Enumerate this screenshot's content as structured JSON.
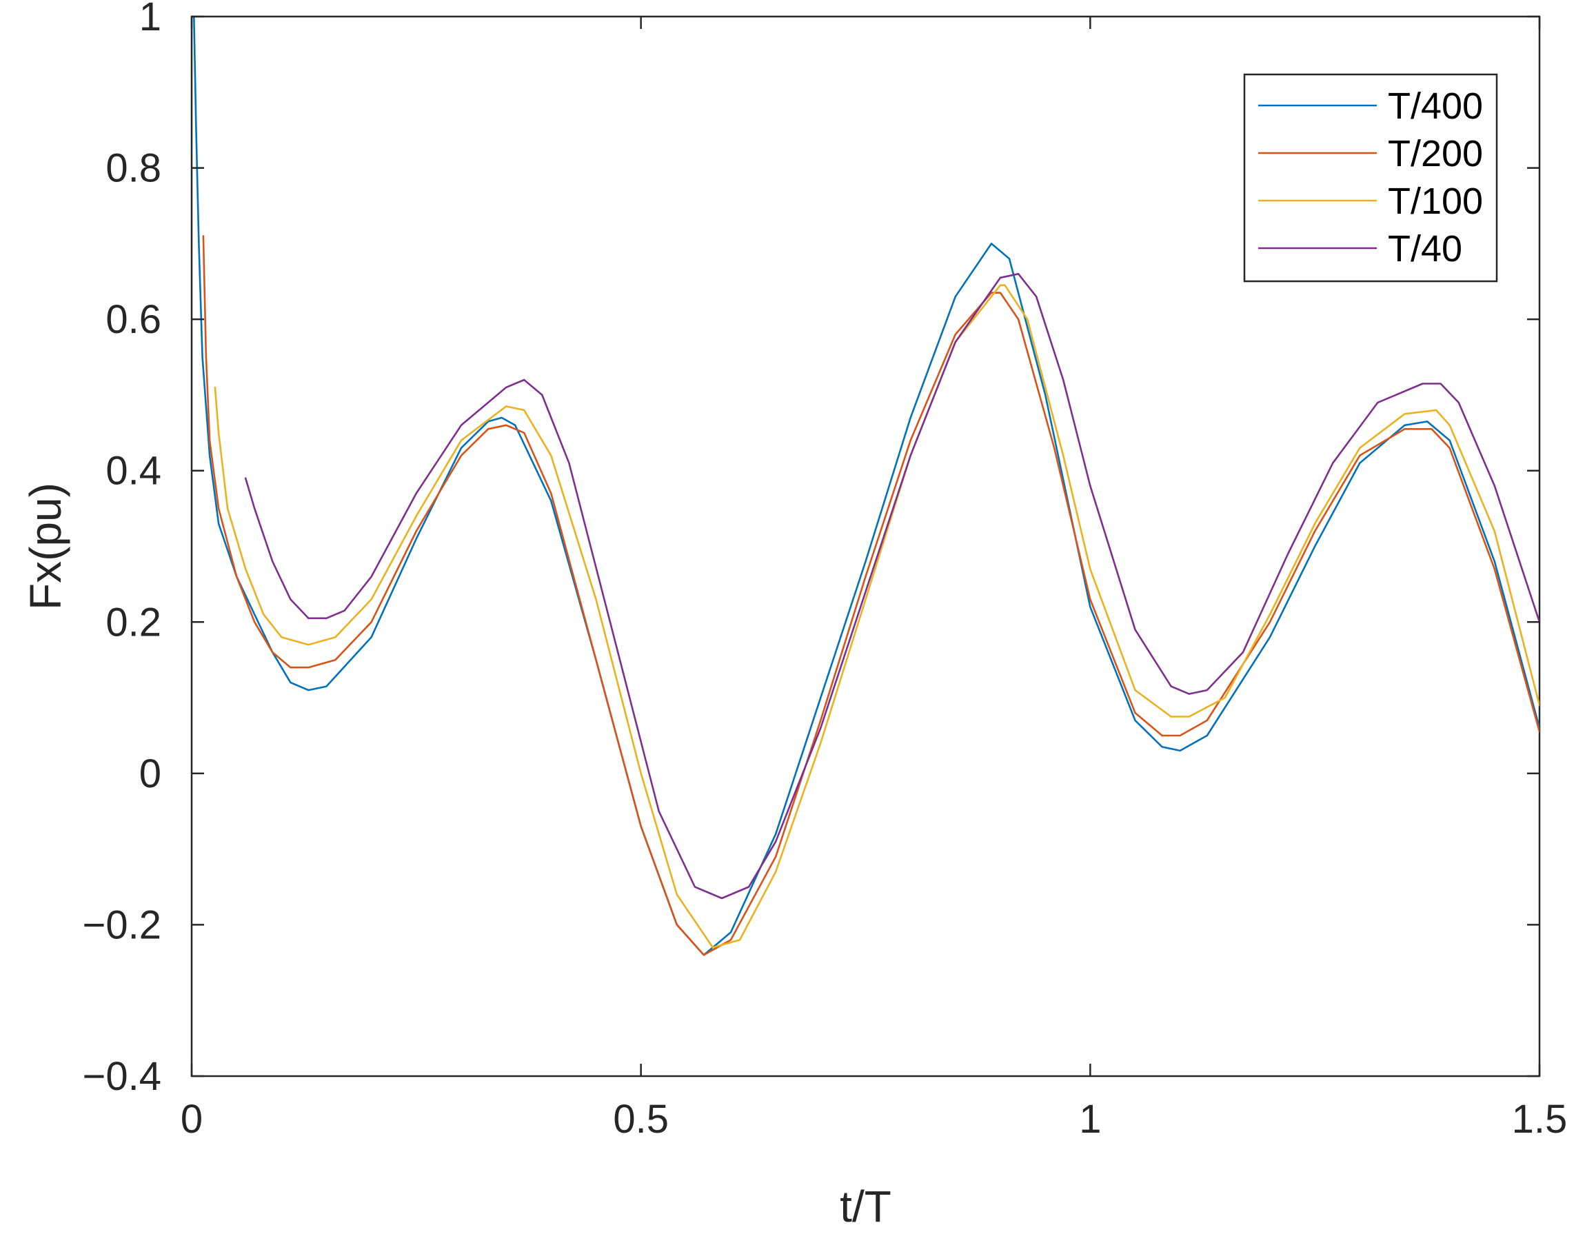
{
  "chart_data": {
    "type": "line",
    "xlabel": "t/T",
    "ylabel": "Fx(pu)",
    "xlim": [
      0,
      1.5
    ],
    "ylim": [
      -0.4,
      1
    ],
    "xticks": [
      0,
      0.5,
      1,
      1.5
    ],
    "xtick_labels": [
      "0",
      "0.5",
      "1",
      "1.5"
    ],
    "yticks": [
      -0.4,
      -0.2,
      0,
      0.2,
      0.4,
      0.6,
      0.8,
      1
    ],
    "ytick_labels": [
      "−0.4",
      "−0.2",
      "0",
      "0.2",
      "0.4",
      "0.6",
      "0.8",
      "1"
    ],
    "grid": false,
    "legend_position": "top-right",
    "series": [
      {
        "name": "T/400",
        "color": "#0072BD",
        "x": [
          0.0025,
          0.005,
          0.008,
          0.012,
          0.02,
          0.03,
          0.05,
          0.07,
          0.09,
          0.11,
          0.13,
          0.15,
          0.2,
          0.25,
          0.3,
          0.33,
          0.345,
          0.36,
          0.4,
          0.45,
          0.5,
          0.54,
          0.57,
          0.6,
          0.65,
          0.7,
          0.75,
          0.8,
          0.85,
          0.89,
          0.91,
          0.95,
          1.0,
          1.05,
          1.08,
          1.1,
          1.13,
          1.2,
          1.25,
          1.3,
          1.35,
          1.375,
          1.4,
          1.45,
          1.5
        ],
        "y": [
          1.0,
          0.85,
          0.7,
          0.55,
          0.42,
          0.33,
          0.26,
          0.21,
          0.16,
          0.12,
          0.11,
          0.115,
          0.18,
          0.31,
          0.43,
          0.465,
          0.47,
          0.46,
          0.36,
          0.15,
          -0.07,
          -0.2,
          -0.24,
          -0.21,
          -0.08,
          0.1,
          0.28,
          0.47,
          0.63,
          0.7,
          0.68,
          0.5,
          0.22,
          0.07,
          0.035,
          0.03,
          0.05,
          0.18,
          0.3,
          0.41,
          0.46,
          0.465,
          0.44,
          0.28,
          0.06
        ]
      },
      {
        "name": "T/200",
        "color": "#D95319",
        "x": [
          0.013,
          0.016,
          0.02,
          0.03,
          0.05,
          0.07,
          0.09,
          0.11,
          0.13,
          0.16,
          0.2,
          0.25,
          0.3,
          0.33,
          0.35,
          0.37,
          0.4,
          0.45,
          0.5,
          0.54,
          0.57,
          0.6,
          0.65,
          0.7,
          0.75,
          0.8,
          0.85,
          0.89,
          0.9,
          0.92,
          0.96,
          1.0,
          1.05,
          1.08,
          1.1,
          1.13,
          1.2,
          1.25,
          1.3,
          1.35,
          1.38,
          1.4,
          1.45,
          1.5
        ],
        "y": [
          0.71,
          0.55,
          0.44,
          0.35,
          0.26,
          0.2,
          0.16,
          0.14,
          0.14,
          0.15,
          0.2,
          0.32,
          0.42,
          0.455,
          0.46,
          0.45,
          0.37,
          0.15,
          -0.07,
          -0.2,
          -0.24,
          -0.22,
          -0.11,
          0.07,
          0.26,
          0.44,
          0.58,
          0.635,
          0.635,
          0.6,
          0.43,
          0.23,
          0.08,
          0.05,
          0.05,
          0.07,
          0.2,
          0.32,
          0.42,
          0.455,
          0.455,
          0.43,
          0.27,
          0.055
        ]
      },
      {
        "name": "T/100",
        "color": "#EDB120",
        "x": [
          0.026,
          0.03,
          0.04,
          0.06,
          0.08,
          0.1,
          0.13,
          0.16,
          0.2,
          0.25,
          0.3,
          0.35,
          0.37,
          0.4,
          0.45,
          0.5,
          0.54,
          0.58,
          0.61,
          0.65,
          0.7,
          0.75,
          0.8,
          0.85,
          0.9,
          0.905,
          0.93,
          0.97,
          1.0,
          1.05,
          1.09,
          1.11,
          1.15,
          1.2,
          1.25,
          1.3,
          1.35,
          1.385,
          1.4,
          1.45,
          1.5
        ],
        "y": [
          0.51,
          0.45,
          0.35,
          0.27,
          0.21,
          0.18,
          0.17,
          0.18,
          0.23,
          0.34,
          0.44,
          0.485,
          0.48,
          0.42,
          0.23,
          0.0,
          -0.16,
          -0.23,
          -0.22,
          -0.13,
          0.04,
          0.23,
          0.42,
          0.57,
          0.645,
          0.645,
          0.6,
          0.42,
          0.27,
          0.11,
          0.075,
          0.075,
          0.1,
          0.21,
          0.33,
          0.43,
          0.475,
          0.48,
          0.46,
          0.32,
          0.09
        ]
      },
      {
        "name": "T/40",
        "color": "#7E2F8E",
        "x": [
          0.06,
          0.07,
          0.09,
          0.11,
          0.13,
          0.15,
          0.17,
          0.2,
          0.25,
          0.3,
          0.35,
          0.37,
          0.39,
          0.42,
          0.47,
          0.52,
          0.56,
          0.59,
          0.62,
          0.65,
          0.7,
          0.75,
          0.8,
          0.85,
          0.9,
          0.92,
          0.94,
          0.97,
          1.0,
          1.05,
          1.09,
          1.11,
          1.13,
          1.17,
          1.22,
          1.27,
          1.32,
          1.37,
          1.39,
          1.41,
          1.45,
          1.5
        ],
        "y": [
          0.39,
          0.35,
          0.28,
          0.23,
          0.205,
          0.205,
          0.215,
          0.26,
          0.37,
          0.46,
          0.51,
          0.52,
          0.5,
          0.41,
          0.18,
          -0.05,
          -0.15,
          -0.165,
          -0.15,
          -0.09,
          0.06,
          0.24,
          0.42,
          0.57,
          0.655,
          0.66,
          0.63,
          0.52,
          0.38,
          0.19,
          0.115,
          0.105,
          0.11,
          0.16,
          0.29,
          0.41,
          0.49,
          0.515,
          0.515,
          0.49,
          0.38,
          0.2
        ]
      }
    ]
  }
}
